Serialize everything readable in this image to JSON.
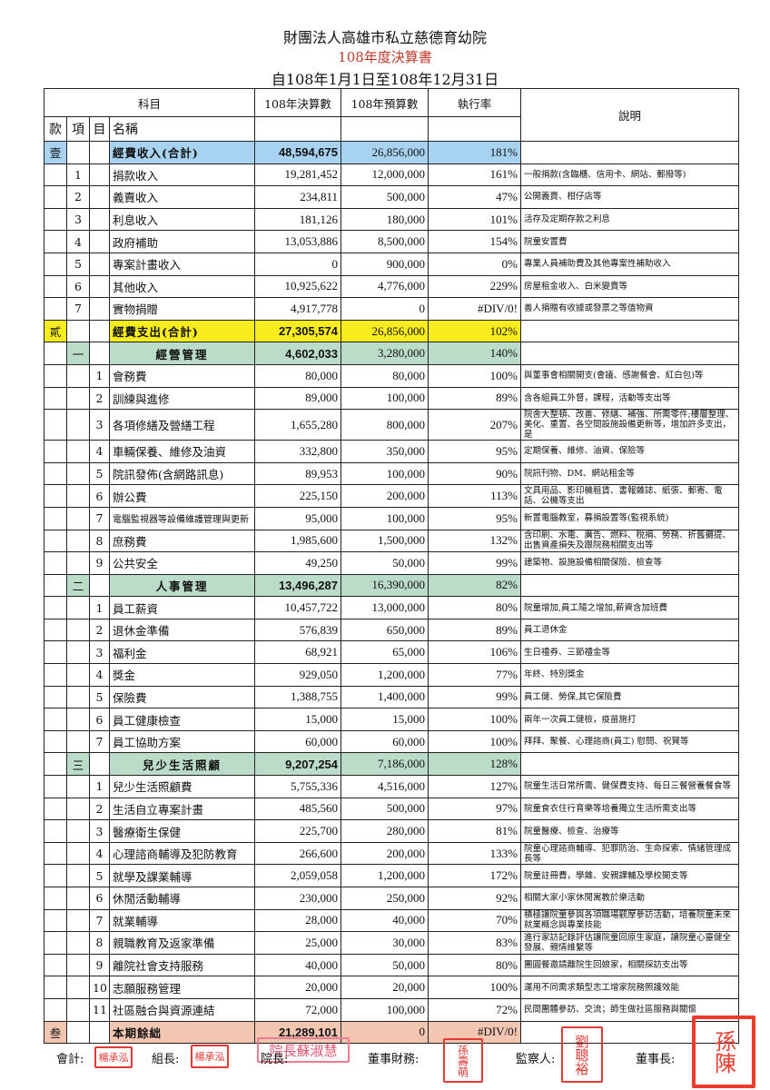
{
  "title": "財團法人高雄市私立慈德育幼院",
  "subtitle": "108年度決算書",
  "period": "自108年1月1日至108年12月31日",
  "headers": {
    "subject": "科目",
    "actual": "108年決算數",
    "budget": "108年預算數",
    "rate": "執行率",
    "note": "說明",
    "kuan": "款",
    "xiang": "項",
    "mu": "目",
    "name": "名稱"
  },
  "colors": {
    "income_total": "#a7d3f1",
    "expense_total": "#f8ec1c",
    "section": "#bcdcca",
    "balance": "#f3c6b2"
  },
  "rows": [
    {
      "type": "income",
      "kuan": "壹",
      "xiang": "",
      "mu": "",
      "name": "經費收入(合計)",
      "actual": "48,594,675",
      "budget": "26,856,000",
      "rate": "181%",
      "note": ""
    },
    {
      "type": "item",
      "kuan": "",
      "xiang": "1",
      "mu": "",
      "name": "捐款收入",
      "actual": "19,281,452",
      "budget": "12,000,000",
      "rate": "161%",
      "note": "一般捐款(含臨櫃、信用卡、網站、郵撥等)"
    },
    {
      "type": "item",
      "kuan": "",
      "xiang": "2",
      "mu": "",
      "name": "義賣收入",
      "actual": "234,811",
      "budget": "500,000",
      "rate": "47%",
      "note": "公開義賣、柑仔店等"
    },
    {
      "type": "item",
      "kuan": "",
      "xiang": "3",
      "mu": "",
      "name": "利息收入",
      "actual": "181,126",
      "budget": "180,000",
      "rate": "101%",
      "note": "活存及定期存款之利息"
    },
    {
      "type": "item",
      "kuan": "",
      "xiang": "4",
      "mu": "",
      "name": "政府補助",
      "actual": "13,053,886",
      "budget": "8,500,000",
      "rate": "154%",
      "note": "院童安置費"
    },
    {
      "type": "item",
      "kuan": "",
      "xiang": "5",
      "mu": "",
      "name": "專案計畫收入",
      "actual": "0",
      "budget": "900,000",
      "rate": "0%",
      "note": "專業人員補助費及其他專案性補助收入"
    },
    {
      "type": "item",
      "kuan": "",
      "xiang": "6",
      "mu": "",
      "name": "其他收入",
      "actual": "10,925,622",
      "budget": "4,776,000",
      "rate": "229%",
      "note": "房屋租金收入、白米變賣等"
    },
    {
      "type": "item",
      "kuan": "",
      "xiang": "7",
      "mu": "",
      "name": "實物捐贈",
      "actual": "4,917,778",
      "budget": "0",
      "rate": "#DIV/0!",
      "note": "善人捐贈有收據或發票之等值物資"
    },
    {
      "type": "expense",
      "kuan": "貳",
      "xiang": "",
      "mu": "",
      "name": "經費支出(合計)",
      "actual": "27,305,574",
      "budget": "26,856,000",
      "rate": "102%",
      "note": ""
    },
    {
      "type": "section",
      "kuan": "",
      "xiang": "一",
      "mu": "",
      "name": "經營管理",
      "actual": "4,602,033",
      "budget": "3,280,000",
      "rate": "140%",
      "note": ""
    },
    {
      "type": "sub",
      "kuan": "",
      "xiang": "",
      "mu": "1",
      "name": "會務費",
      "actual": "80,000",
      "budget": "80,000",
      "rate": "100%",
      "note": "與董事會相關開支(會議、感謝餐會、紅白包)等"
    },
    {
      "type": "sub",
      "kuan": "",
      "xiang": "",
      "mu": "2",
      "name": "訓練與進修",
      "actual": "89,000",
      "budget": "100,000",
      "rate": "89%",
      "note": "含各組員工外督，課程，活動等支出等"
    },
    {
      "type": "sub",
      "kuan": "",
      "xiang": "",
      "mu": "3",
      "name": "各項修繕及營繕工程",
      "actual": "1,655,280",
      "budget": "800,000",
      "rate": "207%",
      "note": "院舍大整頓、改善、修繕、補強、所需零件;樓層整理、美化、重置、各空間設施設備更新等，增加許多支出，是"
    },
    {
      "type": "sub",
      "kuan": "",
      "xiang": "",
      "mu": "4",
      "name": "車輛保養、維修及油資",
      "actual": "332,800",
      "budget": "350,000",
      "rate": "95%",
      "note": "定期保養、維修、油資、保險等"
    },
    {
      "type": "sub",
      "kuan": "",
      "xiang": "",
      "mu": "5",
      "name": "院訊發佈(含網路訊息)",
      "actual": "89,953",
      "budget": "100,000",
      "rate": "90%",
      "note": "院訊刊物、DM、網站租金等"
    },
    {
      "type": "sub",
      "kuan": "",
      "xiang": "",
      "mu": "6",
      "name": "辦公費",
      "actual": "225,150",
      "budget": "200,000",
      "rate": "113%",
      "note": "文具用品、影印機租賃、書報雜誌、紙張、郵寄、電話、公機等支出"
    },
    {
      "type": "sub",
      "kuan": "",
      "xiang": "",
      "mu": "7",
      "name": "電腦監視器等設備維護管理與更新",
      "actual": "95,000",
      "budget": "100,000",
      "rate": "95%",
      "note": "新置電腦教室，募捐設置等(監視系統)",
      "small": true
    },
    {
      "type": "sub",
      "kuan": "",
      "xiang": "",
      "mu": "8",
      "name": "庶務費",
      "actual": "1,985,600",
      "budget": "1,500,000",
      "rate": "132%",
      "note": "含印刷、水電、廣告、燃料、稅捐、勞務、折舊攤提、出售資產損失及跟院務相關支出等"
    },
    {
      "type": "sub",
      "kuan": "",
      "xiang": "",
      "mu": "9",
      "name": "公共安全",
      "actual": "49,250",
      "budget": "50,000",
      "rate": "99%",
      "note": "建築物、設施設備相關保險、檢查等"
    },
    {
      "type": "section",
      "kuan": "",
      "xiang": "二",
      "mu": "",
      "name": "人事管理",
      "actual": "13,496,287",
      "budget": "16,390,000",
      "rate": "82%",
      "note": ""
    },
    {
      "type": "sub",
      "kuan": "",
      "xiang": "",
      "mu": "1",
      "name": "員工薪資",
      "actual": "10,457,722",
      "budget": "13,000,000",
      "rate": "80%",
      "note": "院童增加,員工隨之增加,薪資含加班費"
    },
    {
      "type": "sub",
      "kuan": "",
      "xiang": "",
      "mu": "2",
      "name": "退休金準備",
      "actual": "576,839",
      "budget": "650,000",
      "rate": "89%",
      "note": "員工退休金"
    },
    {
      "type": "sub",
      "kuan": "",
      "xiang": "",
      "mu": "3",
      "name": "福利金",
      "actual": "68,921",
      "budget": "65,000",
      "rate": "106%",
      "note": "生日禮券、三節禮金等"
    },
    {
      "type": "sub",
      "kuan": "",
      "xiang": "",
      "mu": "4",
      "name": "獎金",
      "actual": "929,050",
      "budget": "1,200,000",
      "rate": "77%",
      "note": "年終、特別獎金"
    },
    {
      "type": "sub",
      "kuan": "",
      "xiang": "",
      "mu": "5",
      "name": "保險費",
      "actual": "1,388,755",
      "budget": "1,400,000",
      "rate": "99%",
      "note": "員工健、勞保,其它保險費"
    },
    {
      "type": "sub",
      "kuan": "",
      "xiang": "",
      "mu": "6",
      "name": "員工健康檢查",
      "actual": "15,000",
      "budget": "15,000",
      "rate": "100%",
      "note": "兩年一次員工健檢，疫苗施打"
    },
    {
      "type": "sub",
      "kuan": "",
      "xiang": "",
      "mu": "7",
      "name": "員工協助方案",
      "actual": "60,000",
      "budget": "60,000",
      "rate": "100%",
      "note": "拜拜、聚餐、心理諮商(員工) 慰問、祝賀等"
    },
    {
      "type": "section",
      "kuan": "",
      "xiang": "三",
      "mu": "",
      "name": "兒少生活照顧",
      "actual": "9,207,254",
      "budget": "7,186,000",
      "rate": "128%",
      "note": ""
    },
    {
      "type": "sub",
      "kuan": "",
      "xiang": "",
      "mu": "1",
      "name": "兒少生活照顧費",
      "actual": "5,755,336",
      "budget": "4,516,000",
      "rate": "127%",
      "note": "院童生活日常所需、健保費支持、每日三餐營養餐食等"
    },
    {
      "type": "sub",
      "kuan": "",
      "xiang": "",
      "mu": "2",
      "name": "生活自立專案計畫",
      "actual": "485,560",
      "budget": "500,000",
      "rate": "97%",
      "note": "院童食衣住行育樂等培養獨立生活所需支出等"
    },
    {
      "type": "sub",
      "kuan": "",
      "xiang": "",
      "mu": "3",
      "name": "醫療衛生保健",
      "actual": "225,700",
      "budget": "280,000",
      "rate": "81%",
      "note": "院童醫療、檢查、治療等"
    },
    {
      "type": "sub",
      "kuan": "",
      "xiang": "",
      "mu": "4",
      "name": "心理諮商輔導及犯防教育",
      "actual": "266,600",
      "budget": "200,000",
      "rate": "133%",
      "note": "院童心理諮商輔導、犯罪防治、生命探索、情緒管理成長等"
    },
    {
      "type": "sub",
      "kuan": "",
      "xiang": "",
      "mu": "5",
      "name": "就學及課業輔導",
      "actual": "2,059,058",
      "budget": "1,200,000",
      "rate": "172%",
      "note": "院童註冊費，學雜、安親課輔及學校開支等"
    },
    {
      "type": "sub",
      "kuan": "",
      "xiang": "",
      "mu": "6",
      "name": "休閒活動輔導",
      "actual": "230,000",
      "budget": "250,000",
      "rate": "92%",
      "note": "相關大家小家休閒寓教於樂活動"
    },
    {
      "type": "sub",
      "kuan": "",
      "xiang": "",
      "mu": "7",
      "name": "就業輔導",
      "actual": "28,000",
      "budget": "40,000",
      "rate": "70%",
      "note": "積極讓院童參與各項職場觀摩參訪活動，培養院童未來就業概念與專業技能"
    },
    {
      "type": "sub",
      "kuan": "",
      "xiang": "",
      "mu": "8",
      "name": "親職教育及返家準備",
      "actual": "25,000",
      "budget": "30,000",
      "rate": "83%",
      "note": "進行家訪記錄評估讓院童回原生家庭，讓院童心靈健全發展、親情維繫等"
    },
    {
      "type": "sub",
      "kuan": "",
      "xiang": "",
      "mu": "9",
      "name": "離院社會支持服務",
      "actual": "40,000",
      "budget": "50,000",
      "rate": "80%",
      "note": "團圓餐邀請離院生回娘家，相關探訪支出等"
    },
    {
      "type": "sub",
      "kuan": "",
      "xiang": "",
      "mu": "10",
      "name": "志願服務管理",
      "actual": "20,000",
      "budget": "20,000",
      "rate": "100%",
      "note": "運用不同需求類型志工增家院務照護效能"
    },
    {
      "type": "sub",
      "kuan": "",
      "xiang": "",
      "mu": "11",
      "name": "社區融合與資源連結",
      "actual": "72,000",
      "budget": "100,000",
      "rate": "72%",
      "note": "民間團體參訪、交流；師生做社區服務與關懷"
    },
    {
      "type": "balance",
      "kuan": "叁",
      "xiang": "",
      "mu": "",
      "name": "本期餘絀",
      "actual": "21,289,101",
      "budget": "0",
      "rate": "#DIV/0!",
      "note": ""
    }
  ],
  "footer": {
    "accountant": "會計:",
    "accountant_stamp": "楊承泓",
    "leader": "組長:",
    "leader_stamp": "楊承泓",
    "director": "院長:",
    "director_stamp": "院長蘇淑慧",
    "treasurer": "董事財務:",
    "treasurer_stamp": "孫壽萌",
    "supervisor": "監察人:",
    "supervisor_stamp": "劉聰裕",
    "chairman": "董事長:",
    "chairman_stamp": "孫陳"
  }
}
